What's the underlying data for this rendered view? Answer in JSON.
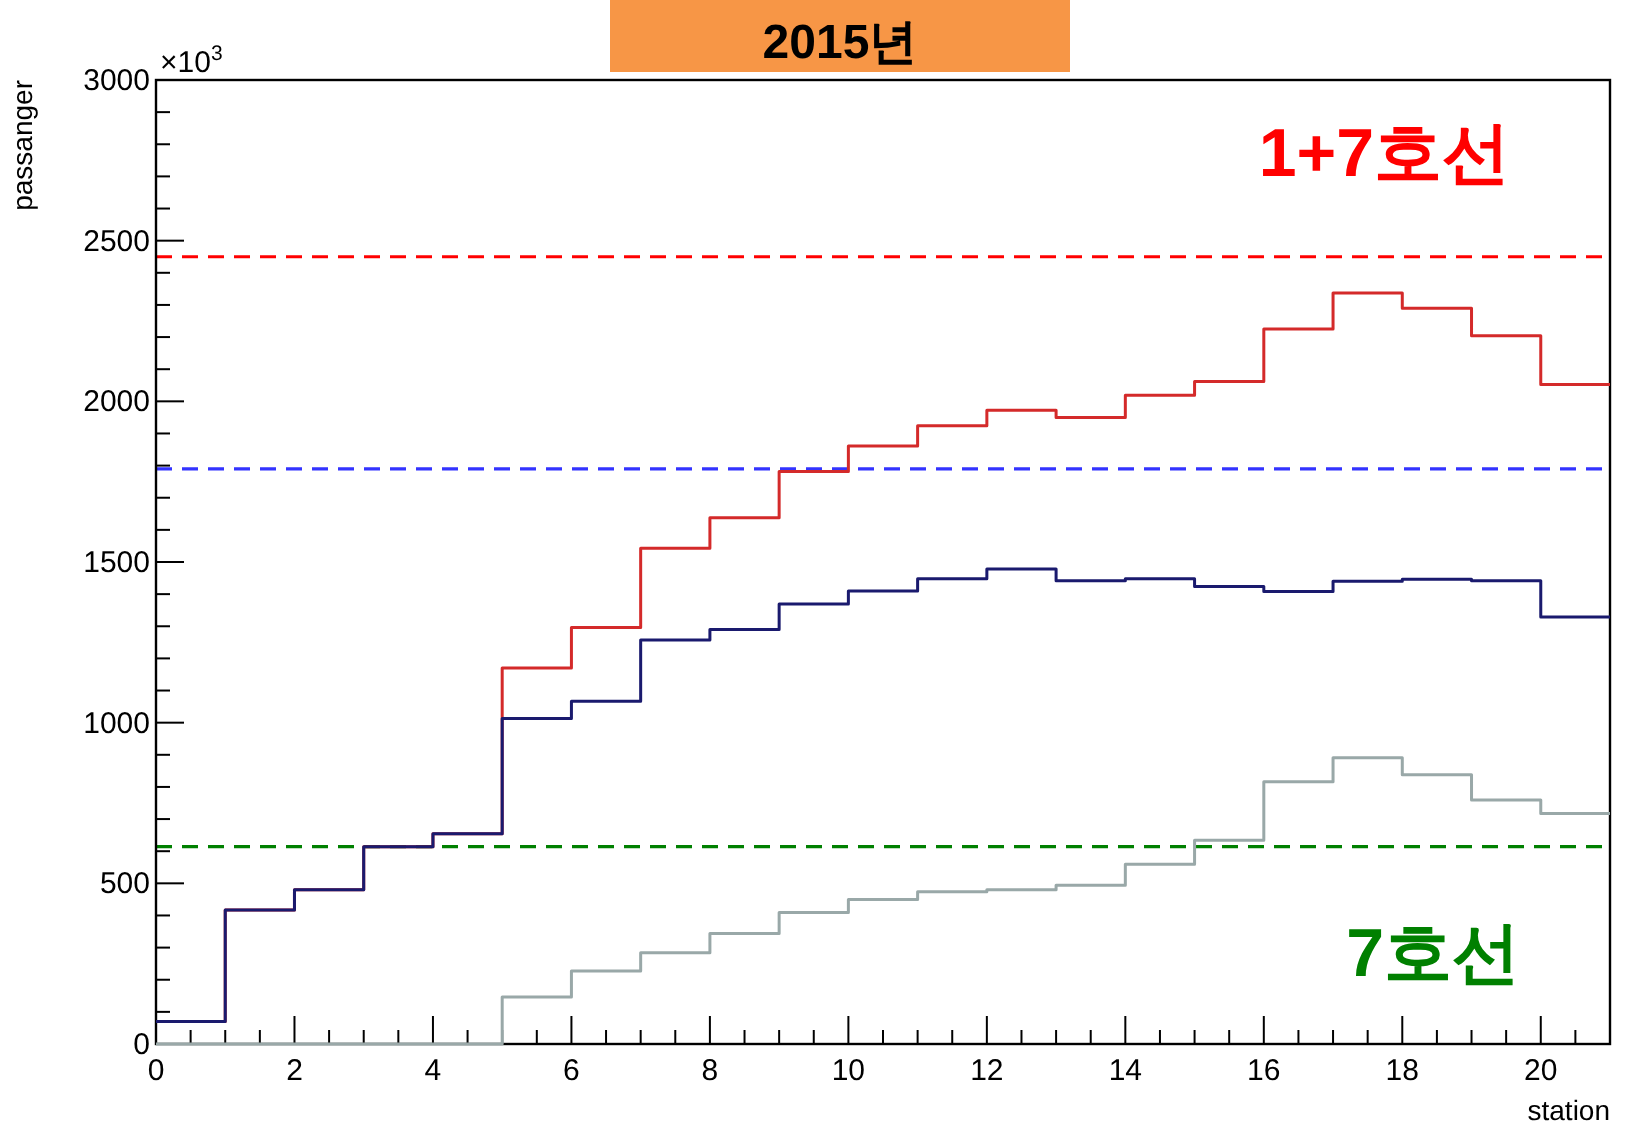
{
  "chart_data": {
    "type": "histogram",
    "title": "2015년",
    "xlabel": "station",
    "ylabel": "passanger",
    "bins": [
      0,
      1,
      2,
      3,
      4,
      5,
      6,
      7,
      8,
      9,
      10,
      11,
      12,
      13,
      14,
      15,
      16,
      17,
      18,
      19,
      20,
      21
    ],
    "series": [
      {
        "color": "#d42a2a",
        "values": [
          70,
          417,
          480,
          614,
          654,
          1170,
          1296,
          1543,
          1638,
          1782,
          1861,
          1924,
          1972,
          1950,
          2019,
          2062,
          2225,
          2337,
          2290,
          2204,
          2052
        ]
      },
      {
        "color": "#1a1a6e",
        "values": [
          70,
          417,
          480,
          614,
          654,
          1013,
          1067,
          1257,
          1290,
          1369,
          1410,
          1448,
          1478,
          1442,
          1448,
          1424,
          1408,
          1440,
          1446,
          1442,
          1329
        ]
      },
      {
        "color": "#99a8a8",
        "values": [
          0,
          0,
          0,
          0,
          0,
          146,
          227,
          284,
          344,
          409,
          450,
          474,
          480,
          494,
          559,
          634,
          816,
          891,
          838,
          759,
          717
        ]
      }
    ],
    "ref_lines": [
      {
        "axis": "y",
        "value": 2450,
        "color": "#ff0000",
        "line_style": "dashed"
      },
      {
        "axis": "y",
        "value": 1790,
        "color": "#3333ff",
        "line_style": "dashed"
      },
      {
        "axis": "y",
        "value": 614,
        "color": "#008000",
        "line_style": "dashed"
      }
    ],
    "annotations": [
      "×10$^{3}$",
      "1+7호선",
      "7호선"
    ],
    "xlim": [
      0,
      21
    ],
    "xticks": [
      0,
      2,
      4,
      6,
      8,
      10,
      12,
      14,
      16,
      18,
      20
    ],
    "ylim": [
      0,
      3000
    ],
    "yticks": [
      0,
      500,
      1000,
      1500,
      2000,
      2500,
      3000
    ],
    "grid": false
  }
}
